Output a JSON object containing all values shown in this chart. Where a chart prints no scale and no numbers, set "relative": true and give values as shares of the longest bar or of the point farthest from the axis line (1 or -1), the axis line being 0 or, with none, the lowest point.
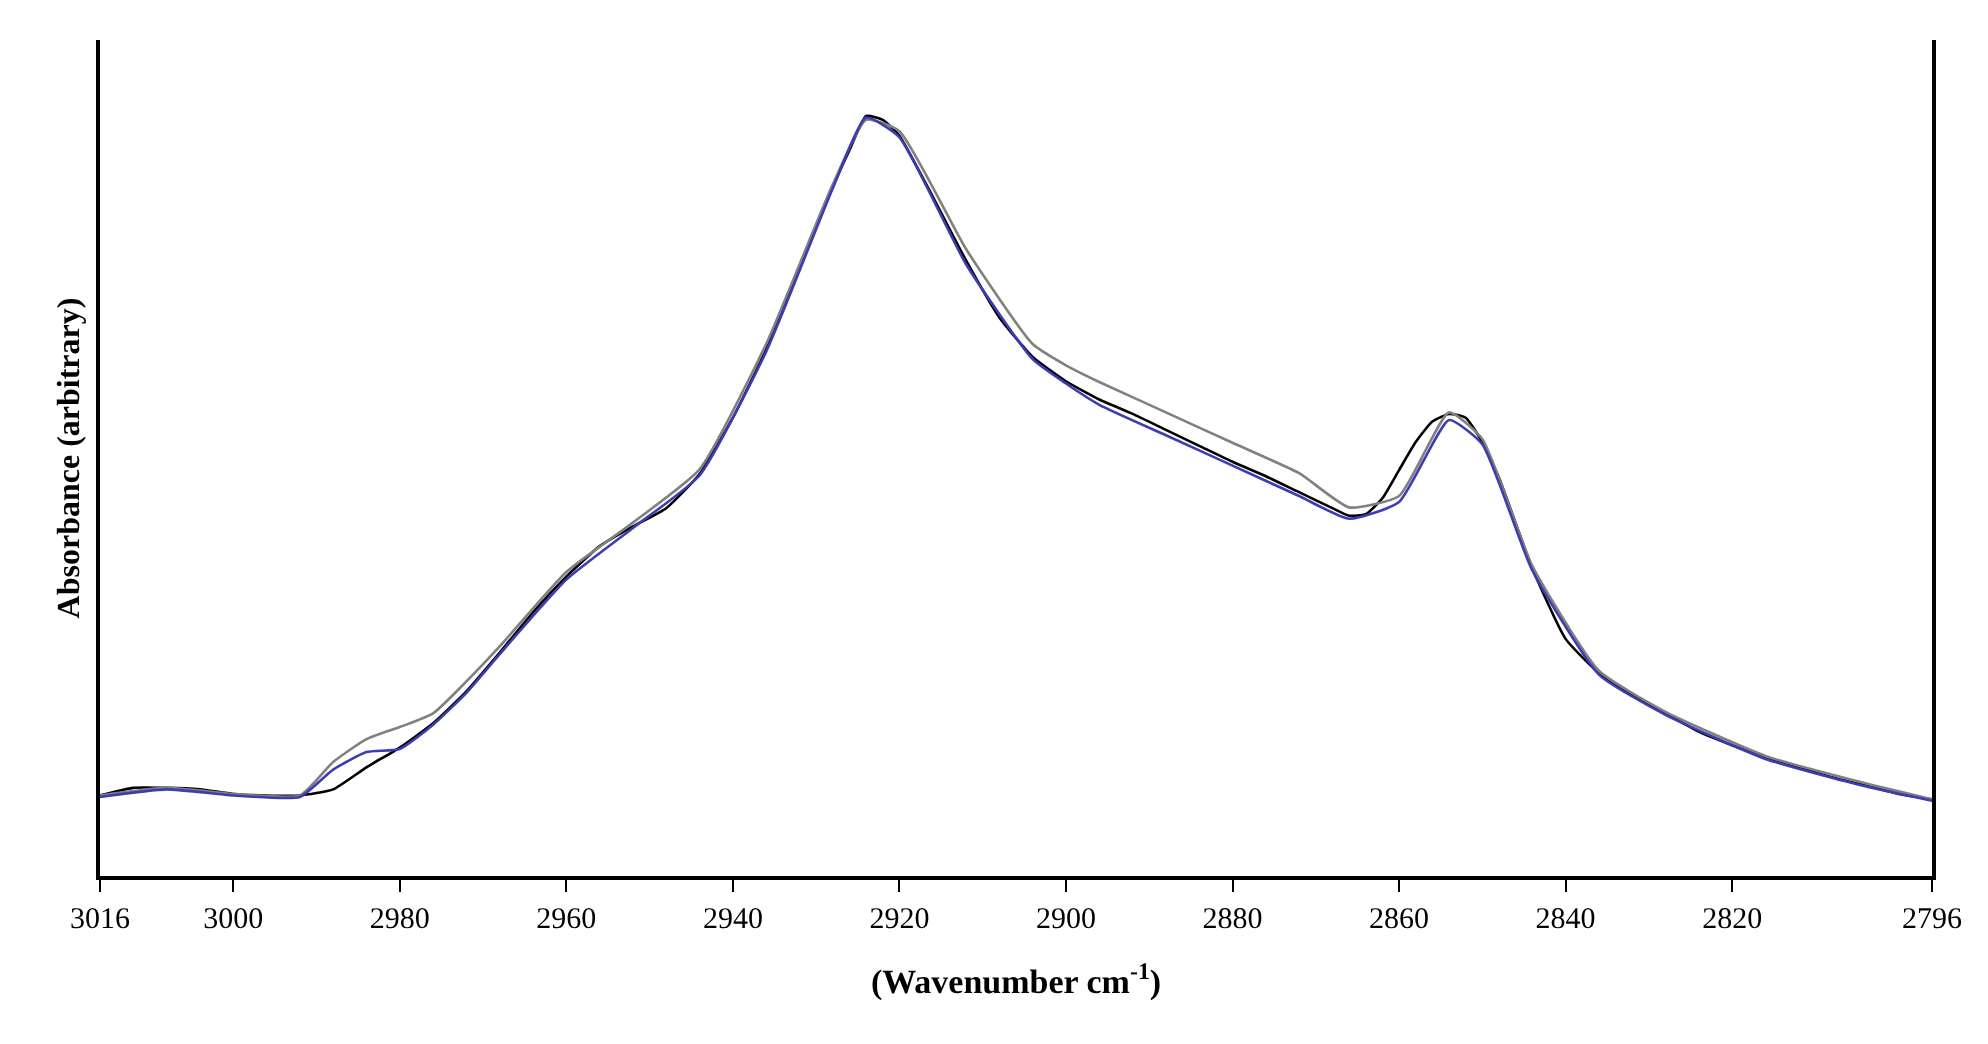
{
  "chart_data": {
    "type": "line",
    "relative": true,
    "xlabel": "(Wavenumber cm$^{-1}$)",
    "ylabel": "Absorbance (arbitrary)",
    "xlim": [
      3016,
      2796
    ],
    "xticks": [
      3016,
      3000,
      2980,
      2960,
      2940,
      2920,
      2900,
      2880,
      2860,
      2840,
      2820,
      2796
    ],
    "marker": "none",
    "line_style": "solid",
    "x": [
      3016,
      3012,
      3008,
      3004,
      3000,
      2996,
      2992,
      2988,
      2984,
      2980,
      2976,
      2972,
      2968,
      2964,
      2960,
      2956,
      2952,
      2948,
      2944,
      2940,
      2936,
      2932,
      2928,
      2926,
      2924,
      2922,
      2920,
      2916,
      2912,
      2908,
      2904,
      2900,
      2896,
      2892,
      2888,
      2884,
      2880,
      2876,
      2872,
      2868,
      2866,
      2864,
      2862,
      2860,
      2858,
      2856,
      2854,
      2852,
      2850,
      2848,
      2844,
      2840,
      2836,
      2832,
      2828,
      2824,
      2820,
      2816,
      2812,
      2808,
      2804,
      2800,
      2796
    ],
    "series": [
      {
        "color": "#000000",
        "values": [
          0.106,
          0.116,
          0.116,
          0.114,
          0.108,
          0.106,
          0.106,
          0.114,
          0.143,
          0.169,
          0.201,
          0.243,
          0.294,
          0.347,
          0.394,
          0.434,
          0.46,
          0.484,
          0.529,
          0.603,
          0.693,
          0.802,
          0.907,
          0.955,
          1.0,
          0.995,
          0.974,
          0.894,
          0.81,
          0.735,
          0.683,
          0.651,
          0.627,
          0.608,
          0.587,
          0.566,
          0.545,
          0.526,
          0.505,
          0.484,
          0.474,
          0.476,
          0.497,
          0.534,
          0.571,
          0.598,
          0.608,
          0.603,
          0.571,
          0.524,
          0.405,
          0.312,
          0.267,
          0.238,
          0.214,
          0.19,
          0.172,
          0.156,
          0.143,
          0.13,
          0.119,
          0.108,
          0.101
        ]
      },
      {
        "color": "#808080",
        "x": [
          3016,
          3008,
          3000,
          2992,
          2988,
          2984,
          2980,
          2976,
          2972,
          2968,
          2960,
          2952,
          2944,
          2936,
          2928,
          2924,
          2920,
          2912,
          2904,
          2900,
          2896,
          2888,
          2880,
          2872,
          2866,
          2860,
          2854,
          2850,
          2844,
          2836,
          2828,
          2816,
          2804,
          2796
        ],
        "values": [
          0.106,
          0.116,
          0.108,
          0.106,
          0.15,
          0.18,
          0.196,
          0.214,
          0.256,
          0.302,
          0.4,
          0.465,
          0.535,
          0.7,
          0.91,
          0.995,
          0.98,
          0.825,
          0.7,
          0.672,
          0.65,
          0.61,
          0.57,
          0.53,
          0.485,
          0.5,
          0.61,
          0.575,
          0.408,
          0.27,
          0.216,
          0.158,
          0.122,
          0.101
        ]
      },
      {
        "color": "#3c3cb4",
        "x": [
          3016,
          3008,
          3000,
          2992,
          2988,
          2984,
          2980,
          2976,
          2972,
          2968,
          2960,
          2952,
          2944,
          2936,
          2928,
          2924,
          2920,
          2912,
          2904,
          2900,
          2896,
          2888,
          2880,
          2872,
          2866,
          2860,
          2854,
          2850,
          2844,
          2836,
          2828,
          2816,
          2804,
          2796
        ],
        "values": [
          0.104,
          0.114,
          0.106,
          0.104,
          0.14,
          0.163,
          0.167,
          0.199,
          0.241,
          0.292,
          0.39,
          0.458,
          0.527,
          0.69,
          0.905,
          0.998,
          0.972,
          0.805,
          0.68,
          0.648,
          0.62,
          0.58,
          0.54,
          0.5,
          0.47,
          0.492,
          0.6,
          0.568,
          0.402,
          0.265,
          0.212,
          0.154,
          0.118,
          0.099
        ]
      }
    ]
  }
}
